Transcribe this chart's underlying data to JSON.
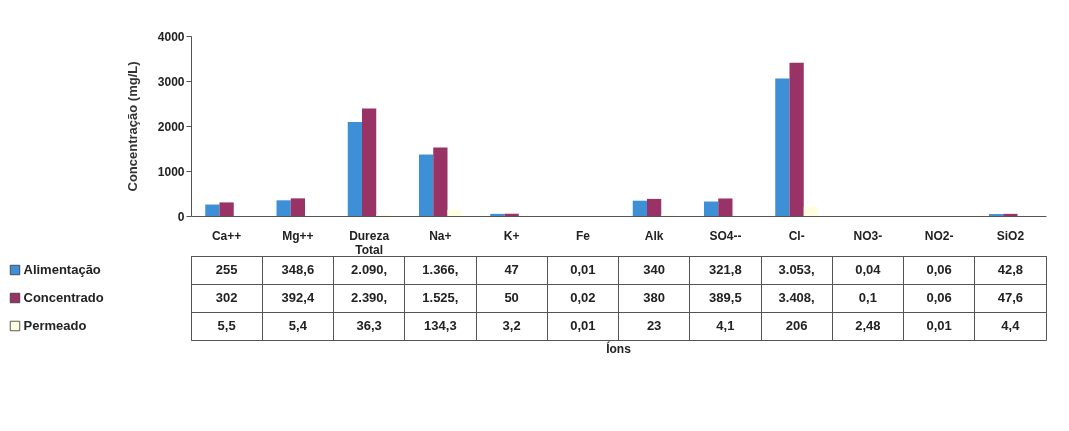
{
  "chart_data": {
    "type": "bar",
    "annotations": [
      "Íons"
    ],
    "ylabel": "Concentração (mg/L)",
    "categories": [
      "Ca++",
      "Mg++",
      "Dureza Total",
      "Na+",
      "K+",
      "Fe",
      "Alk",
      "SO4--",
      "Cl-",
      "NO3-",
      "NO2-",
      "SiO2"
    ],
    "ylim": [
      0,
      4000
    ],
    "yticks": [
      0,
      1000,
      2000,
      3000,
      4000
    ],
    "grid": false,
    "legend": "bottom",
    "series": [
      {
        "name": "Alimentação",
        "color": "#3d8fd6",
        "values": [
          255,
          348.6,
          2090,
          1366,
          47,
          0.01,
          340,
          321.8,
          3053,
          0.04,
          0.06,
          42.8
        ],
        "value_labels": [
          "255",
          "348,6",
          "2.090,",
          "1.366,",
          "47",
          "0,01",
          "340",
          "321,8",
          "3.053,",
          "0,04",
          "0,06",
          "42,8"
        ]
      },
      {
        "name": "Concentrado",
        "color": "#993366",
        "values": [
          302,
          392.4,
          2390,
          1525,
          50,
          0.02,
          380,
          389.5,
          3408,
          0.1,
          0.06,
          47.6
        ],
        "value_labels": [
          "302",
          "392,4",
          "2.390,",
          "1.525,",
          "50",
          "0,02",
          "380",
          "389,5",
          "3.408,",
          "0,1",
          "0,06",
          "47,6"
        ]
      },
      {
        "name": "Permeado",
        "color": "#ffffe0",
        "values": [
          5.5,
          5.4,
          36.3,
          134.3,
          3.2,
          0.01,
          23,
          4.1,
          206,
          2.48,
          0.01,
          4.4
        ],
        "value_labels": [
          "5,5",
          "5,4",
          "36,3",
          "134,3",
          "3,2",
          "0,01",
          "23",
          "4,1",
          "206",
          "2,48",
          "0,01",
          "4,4"
        ]
      }
    ]
  }
}
